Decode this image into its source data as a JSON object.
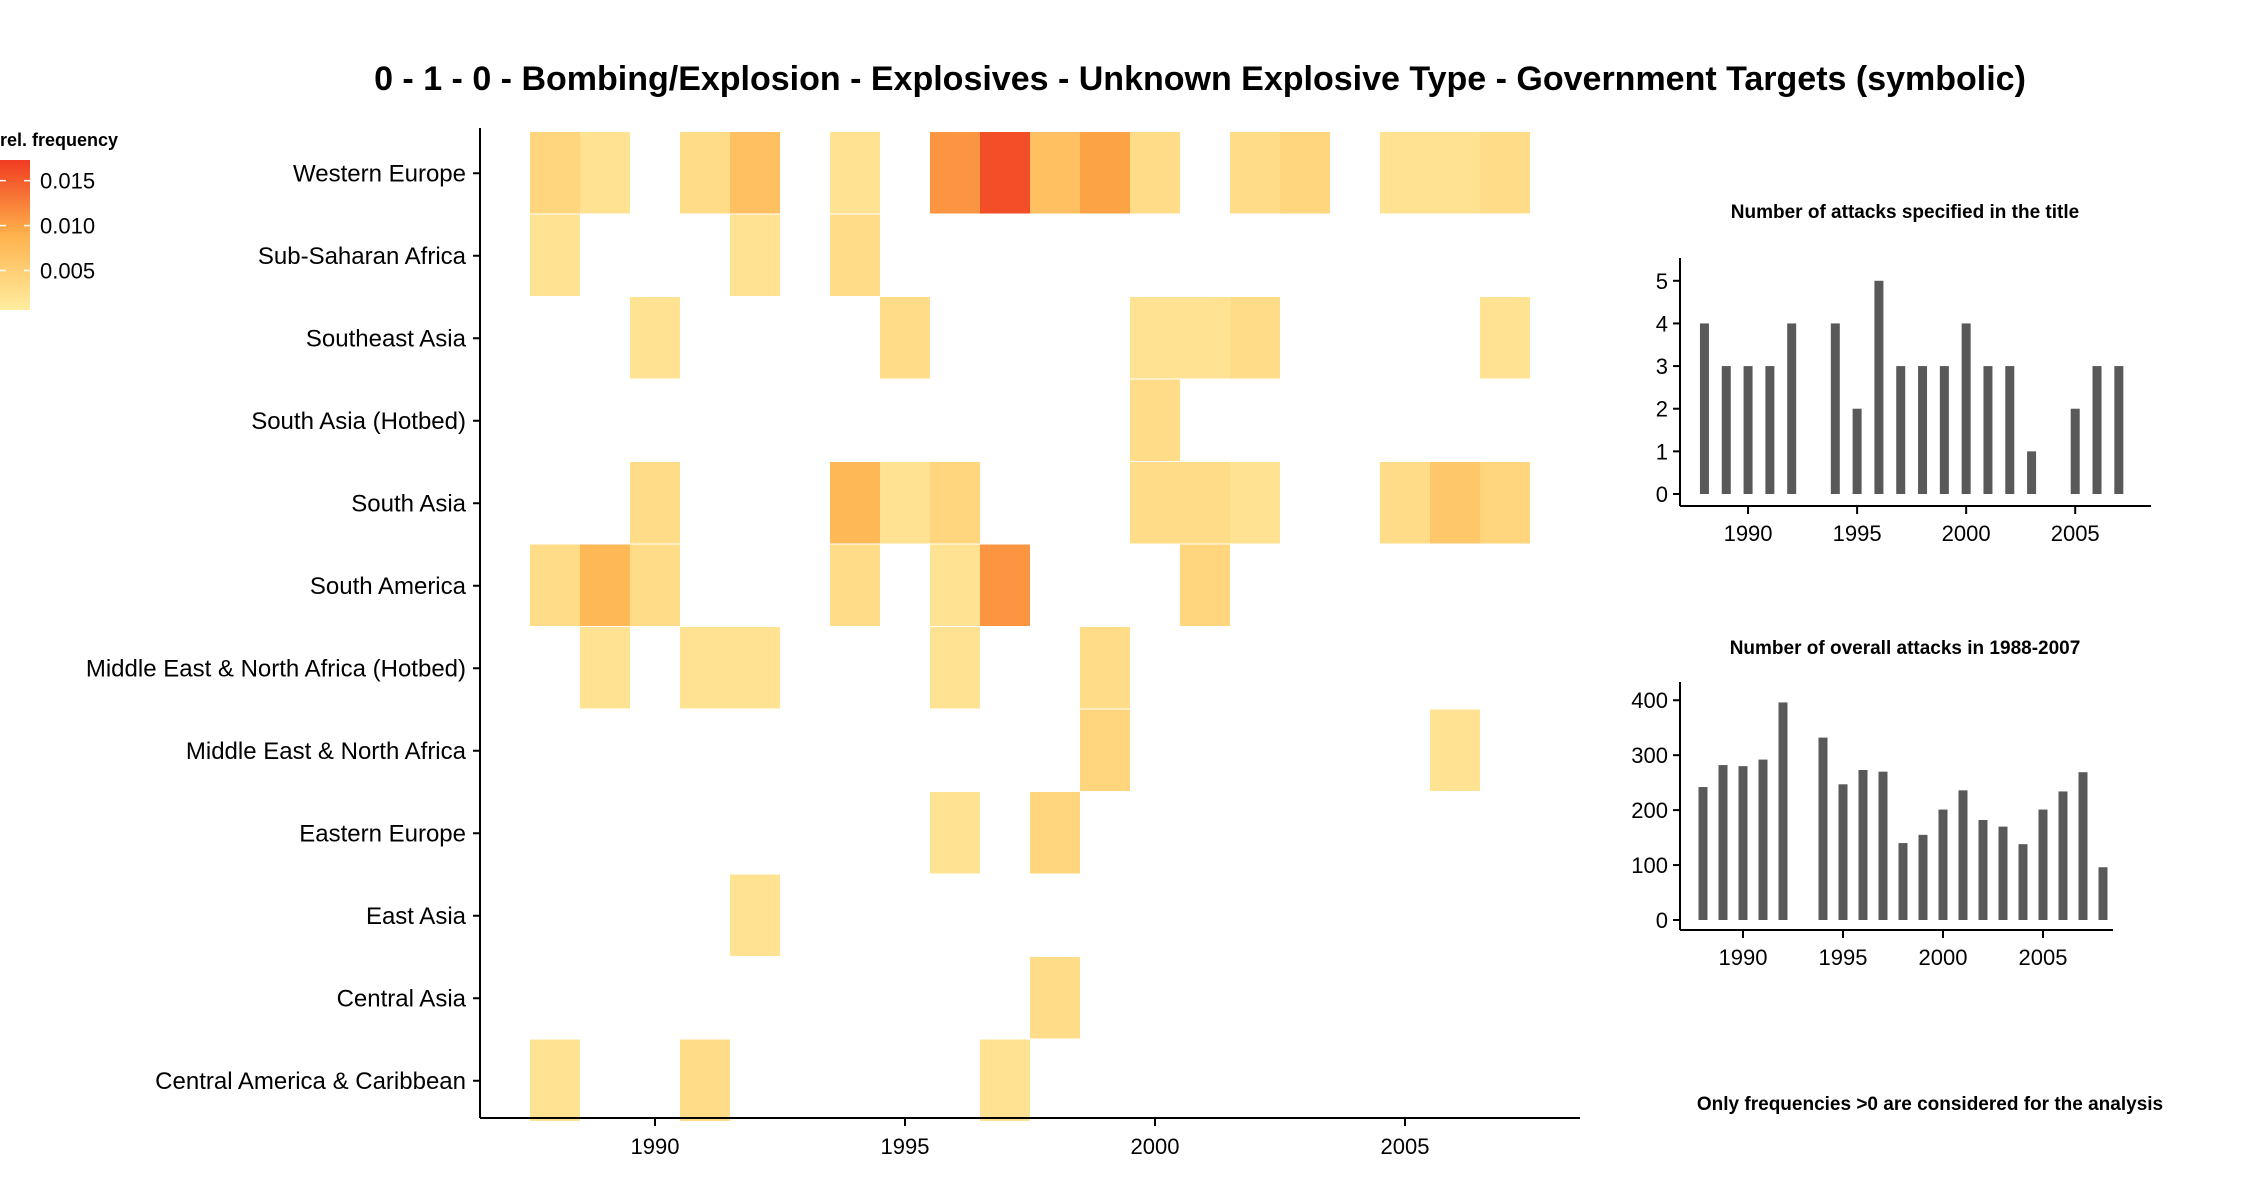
{
  "title": "0 - 1 - 0 - Bombing/Explosion - Explosives - Unknown Explosive Type - Government Targets (symbolic)",
  "note": "Only frequencies >0 are considered for the analysis",
  "colors": {
    "heat_low": "#ffeda0",
    "heat_mid": "#feb24c",
    "heat_high": "#f03b20",
    "bar": "#595959",
    "axis": "#000000"
  },
  "chart_data": [
    {
      "type": "heatmap",
      "title": "0 - 1 - 0 - Bombing/Explosion - Explosives - Unknown Explosive Type - Government Targets (symbolic)",
      "xlabel": "",
      "ylabel": "",
      "x": [
        1988,
        1989,
        1990,
        1991,
        1992,
        1993,
        1994,
        1995,
        1996,
        1997,
        1998,
        1999,
        2000,
        2001,
        2002,
        2003,
        2004,
        2005,
        2006,
        2007
      ],
      "xlim": [
        1986.5,
        2008.5
      ],
      "x_ticks": [
        "1990",
        "1995",
        "2000",
        "2005"
      ],
      "x_tick_values": [
        1990,
        1995,
        2000,
        2005
      ],
      "rows": [
        "Western Europe",
        "Sub-Saharan Africa",
        "Southeast Asia",
        "South Asia (Hotbed)",
        "South Asia",
        "South America",
        "Middle East & North Africa (Hotbed)",
        "Middle East & North Africa",
        "Eastern Europe",
        "East Asia",
        "Central Asia",
        "Central America & Caribbean"
      ],
      "values": [
        [
          0.004,
          0.002,
          0,
          0.003,
          0.007,
          0,
          0.002,
          0,
          0.011,
          0.016,
          0.007,
          0.01,
          0.003,
          0,
          0.003,
          0.004,
          0,
          0.002,
          0.002,
          0.003
        ],
        [
          0.002,
          0,
          0,
          0,
          0.002,
          0,
          0.003,
          0,
          0,
          0,
          0,
          0,
          0,
          0,
          0,
          0,
          0,
          0,
          0,
          0
        ],
        [
          0,
          0,
          0.002,
          0,
          0,
          0,
          0,
          0.003,
          0,
          0,
          0,
          0,
          0.002,
          0.002,
          0.003,
          0,
          0,
          0,
          0,
          0.002
        ],
        [
          0,
          0,
          0,
          0,
          0,
          0,
          0,
          0,
          0,
          0,
          0,
          0,
          0.003,
          0,
          0,
          0,
          0,
          0,
          0,
          0
        ],
        [
          0,
          0,
          0.003,
          0,
          0,
          0,
          0.008,
          0.002,
          0.004,
          0,
          0,
          0,
          0.003,
          0.003,
          0.002,
          0,
          0,
          0.003,
          0.006,
          0.004
        ],
        [
          0.003,
          0.008,
          0.003,
          0,
          0,
          0,
          0.003,
          0,
          0.002,
          0.011,
          0,
          0,
          0,
          0.004,
          0,
          0,
          0,
          0,
          0,
          0
        ],
        [
          0,
          0.002,
          0,
          0.002,
          0.002,
          0,
          0,
          0,
          0.002,
          0,
          0,
          0.003,
          0,
          0,
          0,
          0,
          0,
          0,
          0,
          0
        ],
        [
          0,
          0,
          0,
          0,
          0,
          0,
          0,
          0,
          0,
          0,
          0,
          0.004,
          0,
          0,
          0,
          0,
          0,
          0,
          0.002,
          0
        ],
        [
          0,
          0,
          0,
          0,
          0,
          0,
          0,
          0,
          0.002,
          0,
          0.004,
          0,
          0,
          0,
          0,
          0,
          0,
          0,
          0,
          0
        ],
        [
          0,
          0,
          0,
          0,
          0.002,
          0,
          0,
          0,
          0,
          0,
          0,
          0,
          0,
          0,
          0,
          0,
          0,
          0,
          0,
          0
        ],
        [
          0,
          0,
          0,
          0,
          0,
          0,
          0,
          0,
          0,
          0,
          0.003,
          0,
          0,
          0,
          0,
          0,
          0,
          0,
          0,
          0
        ],
        [
          0.002,
          0,
          0,
          0.003,
          0,
          0,
          0,
          0,
          0,
          0.002,
          0,
          0,
          0,
          0,
          0,
          0,
          0,
          0,
          0,
          0
        ]
      ],
      "legend": {
        "title": "rel. frequency",
        "ticks": [
          "0.015",
          "0.010",
          "0.005"
        ],
        "tick_values": [
          0.015,
          0.01,
          0.005
        ],
        "range": [
          0.0006,
          0.0173
        ],
        "placement": "left"
      }
    },
    {
      "type": "bar",
      "title": "Number of attacks specified in the title",
      "x": [
        1988,
        1989,
        1990,
        1991,
        1992,
        1994,
        1995,
        1996,
        1997,
        1998,
        1999,
        2000,
        2001,
        2002,
        2003,
        2005,
        2006,
        2007
      ],
      "values": [
        4,
        3,
        3,
        3,
        4,
        4,
        2,
        5,
        3,
        3,
        3,
        4,
        3,
        3,
        1,
        2,
        3,
        3
      ],
      "xlim": [
        1987.2,
        2008.2
      ],
      "ylim": [
        0,
        5.3
      ],
      "x_ticks": [
        "1990",
        "1995",
        "2000",
        "2005"
      ],
      "x_tick_values": [
        1990,
        1995,
        2000,
        2005
      ],
      "y_ticks": [
        "0",
        "1",
        "2",
        "3",
        "4",
        "5"
      ],
      "y_tick_values": [
        0,
        1,
        2,
        3,
        4,
        5
      ]
    },
    {
      "type": "bar",
      "title": "Number of overall attacks in 1988-2007",
      "x": [
        1988,
        1989,
        1990,
        1991,
        1992,
        1994,
        1995,
        1996,
        1997,
        1998,
        1999,
        2000,
        2001,
        2002,
        2003,
        2004,
        2005,
        2006,
        2007,
        2008
      ],
      "values": [
        242,
        282,
        280,
        292,
        396,
        332,
        247,
        273,
        270,
        140,
        155,
        201,
        236,
        182,
        170,
        138,
        201,
        234,
        269,
        96
      ],
      "xlim": [
        1987.2,
        2008.2
      ],
      "ylim": [
        0,
        415
      ],
      "x_ticks": [
        "1990",
        "1995",
        "2000",
        "2005"
      ],
      "x_tick_values": [
        1990,
        1995,
        2000,
        2005
      ],
      "y_ticks": [
        "0",
        "100",
        "200",
        "300",
        "400"
      ],
      "y_tick_values": [
        0,
        100,
        200,
        300,
        400
      ]
    }
  ]
}
